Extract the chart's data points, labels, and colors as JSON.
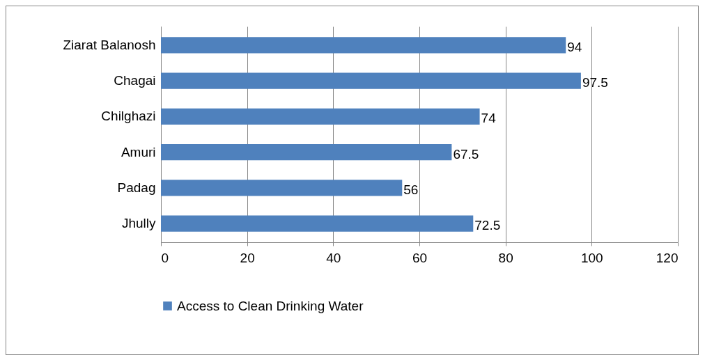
{
  "chart_data": {
    "type": "bar",
    "orientation": "horizontal",
    "categories": [
      "Ziarat Balanosh",
      "Chagai",
      "Chilghazi",
      "Amuri",
      "Padag",
      "Jhully"
    ],
    "series": [
      {
        "name": "Access to Clean Drinking Water",
        "color": "#4f81bd",
        "values": [
          94,
          97.5,
          74,
          67.5,
          56,
          72.5
        ]
      }
    ],
    "xlim": [
      0,
      120
    ],
    "xticks": [
      0,
      20,
      40,
      60,
      80,
      100,
      120
    ],
    "grid": "x",
    "legend": "bottom",
    "data_labels": true
  }
}
